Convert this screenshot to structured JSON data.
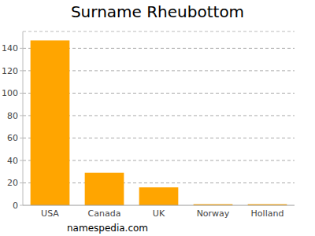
{
  "chart_data": {
    "type": "bar",
    "title": "Surname Rheubottom",
    "categories": [
      "USA",
      "Canada",
      "UK",
      "Norway",
      "Holland"
    ],
    "values": [
      147,
      29,
      16,
      1,
      1
    ],
    "color": "#ffa500",
    "ylim": [
      0,
      155
    ],
    "yticks": [
      0,
      20,
      40,
      60,
      80,
      100,
      120,
      140
    ],
    "grid": true,
    "annotation": "namespedia.com"
  }
}
